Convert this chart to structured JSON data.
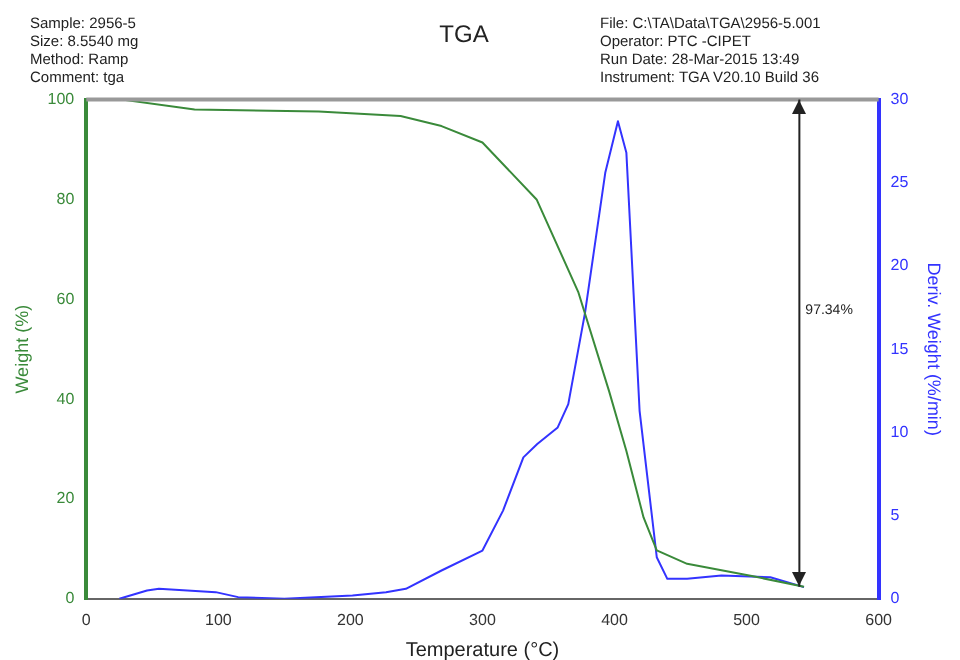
{
  "chart_data": {
    "type": "line",
    "title": "TGA",
    "xlabel": "Temperature (°C)",
    "ylabel": "Weight (%)",
    "y2label": "Deriv. Weight (%/min)",
    "xlim": [
      0,
      600
    ],
    "xticks": [
      0,
      100,
      200,
      300,
      400,
      500,
      600
    ],
    "ylim": [
      0,
      100
    ],
    "yticks": [
      0,
      20,
      40,
      60,
      80,
      100
    ],
    "y2lim": [
      0,
      30
    ],
    "y2ticks": [
      0,
      5,
      10,
      15,
      20,
      25,
      30
    ],
    "grid": false,
    "legend": false,
    "marker": "none",
    "line_style": "solid",
    "series": [
      {
        "color": "#3a8a3a",
        "x": [
          27,
          82,
          176,
          238,
          269,
          300,
          341,
          372.5,
          396,
          409,
          422,
          432,
          455,
          507,
          543.5
        ],
        "values": [
          100,
          98,
          97.6,
          96.7,
          94.7,
          91.4,
          80,
          61.5,
          41.5,
          29.6,
          16.3,
          9.7,
          7,
          4.4,
          2.4
        ]
      },
      {
        "color": "#3333ff",
        "axis": "y2",
        "x": [
          25,
          46,
          55,
          98,
          115,
          150,
          201.6,
          227,
          242,
          269,
          300,
          315.6,
          331,
          341.5,
          357,
          365,
          377.7,
          393,
          402.6,
          409,
          419,
          432,
          440,
          455,
          481,
          518,
          543.5
        ],
        "values": [
          0,
          0.5,
          0.6,
          0.4,
          0.1,
          0,
          0.2,
          0.4,
          0.6,
          1.7,
          2.9,
          5.3,
          8.5,
          9.3,
          10.3,
          11.7,
          17.2,
          25.6,
          28.7,
          26.8,
          11.3,
          2.5,
          1.2,
          1.2,
          1.4,
          1.3,
          0.7
        ]
      }
    ],
    "ref_lines": [
      {
        "axis": "y",
        "value": 100,
        "color": "#999999"
      },
      {
        "axis": "x",
        "value": 540,
        "color": "#222222"
      }
    ],
    "annotations": [
      "Sample: 2956-5",
      "Size:  8.5540 mg",
      "Method: Ramp",
      "Comment: tga",
      "File: C:\\TA\\Data\\TGA\\2956-5.001",
      "Operator: PTC -CIPET",
      "Run Date: 28-Mar-2015 13:49",
      "Instrument: TGA V20.10 Build 36",
      "97.34%"
    ]
  }
}
